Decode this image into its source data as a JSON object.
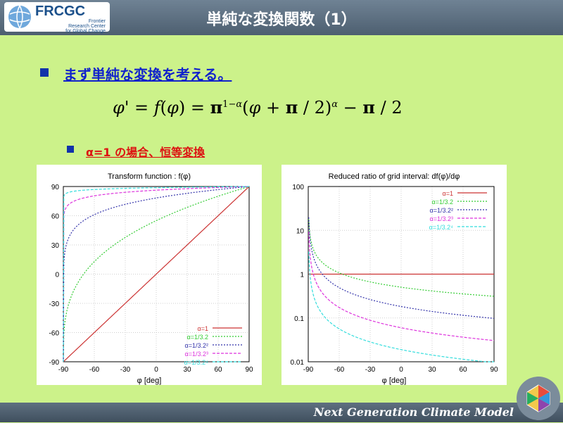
{
  "header": {
    "logo": "FRCGC",
    "logo_sub": [
      "Frontier",
      "Research Center",
      "for Global Change"
    ],
    "title": "単純な変換関数（1）"
  },
  "bullets": [
    {
      "text": "まず単純な変換を考える。"
    },
    {
      "text": "α=1 の場合、恒等変換"
    }
  ],
  "equation": "φ' = f(φ) = π^{1−α}(φ + π/2)^α − π/2",
  "footer": {
    "text": "Next Generation Climate Model"
  },
  "colors": {
    "background": "#ccf28a",
    "header": "#5a6c7d",
    "bullet": "#1133aa",
    "alpha1": "#cc3333",
    "alpha2": "#33cc33",
    "alpha3": "#3333aa",
    "alpha4": "#dd33dd",
    "alpha5": "#33dddd"
  },
  "chart_data": [
    {
      "type": "line",
      "title": "Transform function : f(φ)",
      "xlabel": "φ [deg]",
      "ylabel": "",
      "xlim": [
        -90,
        90
      ],
      "ylim": [
        -90,
        90
      ],
      "xticks": [
        -90,
        -60,
        -30,
        0,
        30,
        60,
        90
      ],
      "yticks": [
        -90,
        -60,
        -30,
        0,
        30,
        60,
        90
      ],
      "grid": true,
      "legend_position": "bottom-right",
      "series": [
        {
          "name": "α=1",
          "alpha": 1.0,
          "color": "#cc3333",
          "dash": ""
        },
        {
          "name": "α=1/3.2",
          "alpha": 0.3125,
          "color": "#33cc33",
          "dash": "2,2"
        },
        {
          "name": "α=1/3.2²",
          "alpha": 0.09766,
          "color": "#3333aa",
          "dash": "2,2"
        },
        {
          "name": "α=1/3.2³",
          "alpha": 0.03052,
          "color": "#dd33dd",
          "dash": "4,2"
        },
        {
          "name": "α=1/3.2⁴",
          "alpha": 0.00954,
          "color": "#33dddd",
          "dash": "4,2"
        }
      ]
    },
    {
      "type": "line",
      "title": "Reduced ratio of grid interval: df(φ)/dφ",
      "xlabel": "φ [deg]",
      "ylabel": "",
      "yscale": "log",
      "xlim": [
        -90,
        90
      ],
      "ylim": [
        0.01,
        100
      ],
      "xticks": [
        -90,
        -60,
        -30,
        0,
        30,
        60,
        90
      ],
      "yticks": [
        "100",
        "10",
        "1",
        "0.1",
        "0.01"
      ],
      "grid": true,
      "legend_position": "top-right",
      "series": [
        {
          "name": "α=1",
          "alpha": 1.0,
          "color": "#cc3333",
          "dash": ""
        },
        {
          "name": "α=1/3.2",
          "alpha": 0.3125,
          "color": "#33cc33",
          "dash": "2,2"
        },
        {
          "name": "α=1/3.2²",
          "alpha": 0.09766,
          "color": "#3333aa",
          "dash": "2,2"
        },
        {
          "name": "α=1/3.2³",
          "alpha": 0.03052,
          "color": "#dd33dd",
          "dash": "4,2"
        },
        {
          "name": "α=1/3.2⁴",
          "alpha": 0.00954,
          "color": "#33dddd",
          "dash": "4,2"
        }
      ]
    }
  ]
}
